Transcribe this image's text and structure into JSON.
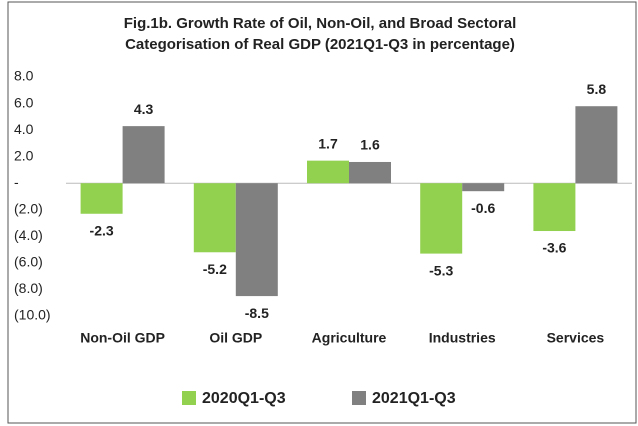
{
  "chart_data": {
    "type": "bar",
    "title": [
      "Fig.1b. Growth Rate of Oil, Non-Oil, and Broad Sectoral",
      "Categorisation of Real GDP (2021Q1-Q3 in percentage)"
    ],
    "categories": [
      "Non-Oil GDP",
      "Oil GDP",
      "Agriculture",
      "Industries",
      "Services"
    ],
    "series": [
      {
        "name": "2020Q1-Q3",
        "color": "#92d050",
        "values": [
          -2.3,
          -5.2,
          1.7,
          -5.3,
          -3.6
        ]
      },
      {
        "name": "2021Q1-Q3",
        "color": "#808080",
        "values": [
          4.3,
          -8.5,
          1.6,
          -0.6,
          5.8
        ]
      }
    ],
    "ylim": [
      -10,
      8
    ],
    "yticks": [
      {
        "value": 8,
        "label": "8.0"
      },
      {
        "value": 6,
        "label": "6.0"
      },
      {
        "value": 4,
        "label": "4.0"
      },
      {
        "value": 2,
        "label": "2.0"
      },
      {
        "value": 0,
        "label": "-"
      },
      {
        "value": -2,
        "label": "(2.0)"
      },
      {
        "value": -4,
        "label": "(4.0)"
      },
      {
        "value": -6,
        "label": "(6.0)"
      },
      {
        "value": -8,
        "label": "(8.0)"
      },
      {
        "value": -10,
        "label": "(10.0)"
      }
    ],
    "grid": false,
    "legend": "bottom"
  }
}
